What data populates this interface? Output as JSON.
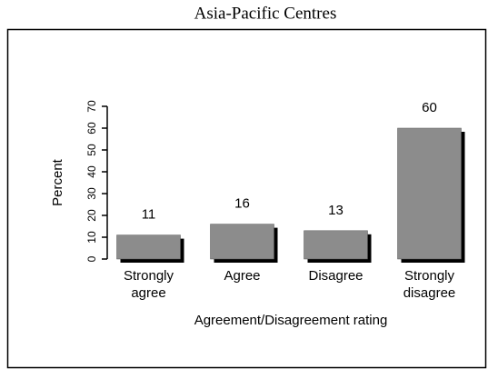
{
  "chart_data": {
    "type": "bar",
    "title": "Asia-Pacific Centres",
    "categories": [
      "Strongly agree",
      "Agree",
      "Disagree",
      "Strongly disagree"
    ],
    "values": [
      11,
      16,
      13,
      60
    ],
    "color": "#8c8c8c",
    "y_label": "Percent",
    "x_label": "Agreement/Disagreement rating",
    "ylim": [
      0,
      70
    ],
    "yticks": [
      0,
      10,
      20,
      30,
      40,
      50,
      60,
      70
    ],
    "grid": false
  }
}
